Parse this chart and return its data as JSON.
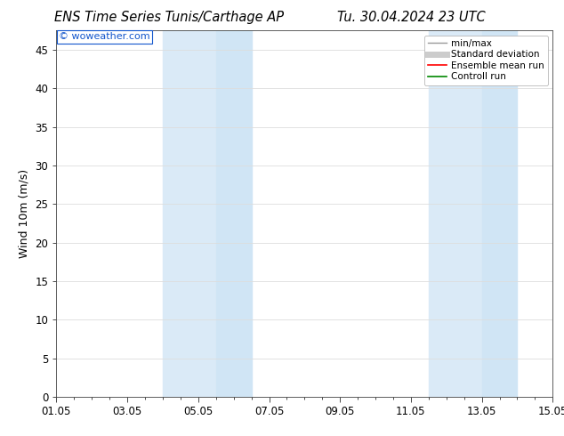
{
  "title_left": "ENS Time Series Tunis/Carthage AP",
  "title_right": "Tu. 30.04.2024 23 UTC",
  "ylabel": "Wind 10m (m/s)",
  "watermark": "© woweather.com",
  "background_color": "#ffffff",
  "plot_bg_color": "#ffffff",
  "ylim": [
    0,
    47.5
  ],
  "yticks": [
    0,
    5,
    10,
    15,
    20,
    25,
    30,
    35,
    40,
    45
  ],
  "xticklabels": [
    "01.05",
    "03.05",
    "05.05",
    "07.05",
    "09.05",
    "11.05",
    "13.05",
    "15.05"
  ],
  "xtick_positions": [
    0,
    2,
    4,
    6,
    8,
    10,
    12,
    14
  ],
  "x_total_days": 14,
  "shade_bands": [
    {
      "start": 3.0,
      "end": 4.5,
      "color": "#daeaf7"
    },
    {
      "start": 4.5,
      "end": 5.5,
      "color": "#d0e5f5"
    },
    {
      "start": 10.5,
      "end": 12.0,
      "color": "#daeaf7"
    },
    {
      "start": 12.0,
      "end": 13.0,
      "color": "#d0e5f5"
    }
  ],
  "legend_items": [
    {
      "label": "min/max",
      "color": "#999999",
      "lw": 1.0,
      "style": "solid"
    },
    {
      "label": "Standard deviation",
      "color": "#cccccc",
      "lw": 5,
      "style": "solid"
    },
    {
      "label": "Ensemble mean run",
      "color": "#ff0000",
      "lw": 1.2,
      "style": "solid"
    },
    {
      "label": "Controll run",
      "color": "#008800",
      "lw": 1.2,
      "style": "solid"
    }
  ],
  "title_fontsize": 10.5,
  "tick_fontsize": 8.5,
  "ylabel_fontsize": 9,
  "watermark_color": "#1155cc",
  "grid_color": "#dddddd",
  "axis_color": "#444444",
  "minor_ticks_per_major": 6
}
